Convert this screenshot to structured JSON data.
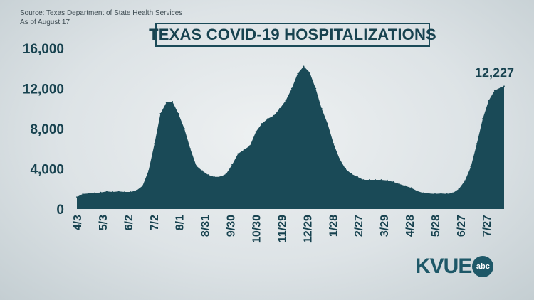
{
  "source": {
    "line1": "Source: Texas Department of State Health Services",
    "line2": "As of August 17"
  },
  "logo": {
    "text": "KVUE",
    "network": "abc"
  },
  "colors": {
    "area_fill": "#1a4a57",
    "text": "#17424f"
  },
  "chart_data": {
    "type": "area",
    "title": "TEXAS COVID-19 HOSPITALIZATIONS",
    "xlabel": "",
    "ylabel": "",
    "ylim": [
      0,
      16000
    ],
    "yticks": [
      0,
      4000,
      8000,
      12000,
      16000
    ],
    "ytick_labels": [
      "0",
      "4,000",
      "8,000",
      "12,000",
      "16,000"
    ],
    "xtick_labels": [
      "4/3",
      "5/3",
      "6/2",
      "7/2",
      "8/1",
      "8/31",
      "9/30",
      "10/30",
      "11/29",
      "12/29",
      "1/28",
      "2/27",
      "3/29",
      "4/28",
      "5/28",
      "6/27",
      "7/27"
    ],
    "grid": false,
    "legend": "none",
    "annotation": {
      "text": "12,227",
      "value": 12227,
      "x": "8/17"
    },
    "series": [
      {
        "x": [
          "2020-04-03",
          "2020-04-10",
          "2020-04-17",
          "2020-04-24",
          "2020-05-01",
          "2020-05-08",
          "2020-05-15",
          "2020-05-22",
          "2020-05-29",
          "2020-06-05",
          "2020-06-12",
          "2020-06-19",
          "2020-06-26",
          "2020-07-03",
          "2020-07-10",
          "2020-07-17",
          "2020-07-24",
          "2020-07-31",
          "2020-08-07",
          "2020-08-14",
          "2020-08-21",
          "2020-08-28",
          "2020-09-04",
          "2020-09-11",
          "2020-09-18",
          "2020-09-25",
          "2020-10-02",
          "2020-10-09",
          "2020-10-16",
          "2020-10-23",
          "2020-10-30",
          "2020-11-06",
          "2020-11-13",
          "2020-11-20",
          "2020-11-27",
          "2020-12-04",
          "2020-12-11",
          "2020-12-18",
          "2020-12-25",
          "2021-01-01",
          "2021-01-08",
          "2021-01-15",
          "2021-01-22",
          "2021-01-29",
          "2021-02-05",
          "2021-02-12",
          "2021-02-19",
          "2021-02-26",
          "2021-03-05",
          "2021-03-12",
          "2021-03-19",
          "2021-03-26",
          "2021-04-02",
          "2021-04-09",
          "2021-04-16",
          "2021-04-23",
          "2021-04-30",
          "2021-05-07",
          "2021-05-14",
          "2021-05-21",
          "2021-05-28",
          "2021-06-04",
          "2021-06-11",
          "2021-06-18",
          "2021-06-25",
          "2021-07-02",
          "2021-07-09",
          "2021-07-16",
          "2021-07-23",
          "2021-07-30",
          "2021-08-06",
          "2021-08-13",
          "2021-08-17"
        ],
        "values": [
          1200,
          1500,
          1550,
          1600,
          1650,
          1750,
          1700,
          1750,
          1700,
          1700,
          1850,
          2300,
          3800,
          6500,
          9500,
          10600,
          10700,
          9500,
          8000,
          6000,
          4300,
          3800,
          3400,
          3200,
          3200,
          3500,
          4400,
          5500,
          5900,
          6300,
          7700,
          8500,
          9000,
          9300,
          10000,
          10800,
          12000,
          13500,
          14200,
          13600,
          12000,
          10000,
          8500,
          6500,
          5000,
          4000,
          3500,
          3200,
          2900,
          2900,
          2900,
          2900,
          2850,
          2700,
          2500,
          2300,
          2100,
          1800,
          1600,
          1550,
          1500,
          1550,
          1500,
          1600,
          2000,
          2800,
          4200,
          6500,
          9000,
          10800,
          11800,
          12100,
          12227
        ]
      }
    ]
  }
}
